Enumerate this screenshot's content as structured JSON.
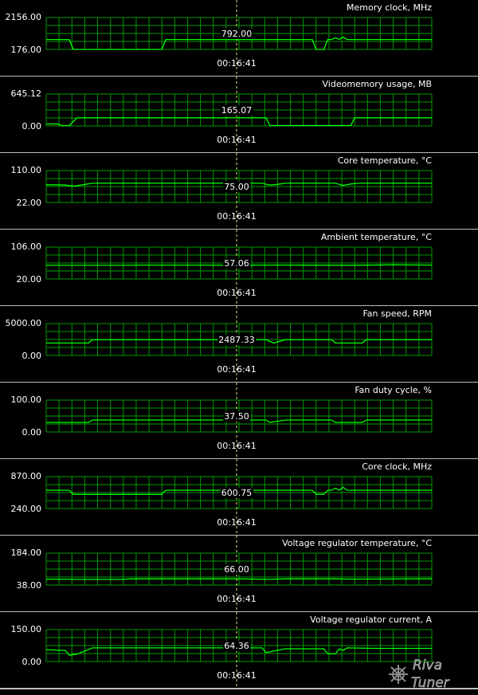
{
  "cursor_time": "00:16:41",
  "colors": {
    "grid": "#009a00",
    "line": "#00ff00",
    "cursor": "#e6e680",
    "separator": "#bdbdbd"
  },
  "watermark": {
    "text": "RivaTuner"
  },
  "chart_data": [
    {
      "type": "line",
      "title": "Memory clock, MHz",
      "ylim": [
        176.0,
        2156.0
      ],
      "ymax_label": "2156.00",
      "ymin_label": "176.00",
      "cursor_value": "792.00",
      "x": [
        0,
        6,
        7,
        30,
        31,
        69,
        70,
        72,
        73,
        74,
        75,
        76,
        77,
        78,
        100
      ],
      "y": [
        792,
        792,
        176,
        176,
        792,
        792,
        176,
        176,
        792,
        792,
        900,
        800,
        950,
        792,
        792
      ]
    },
    {
      "type": "line",
      "title": "Videomemory usage, MB",
      "ylim": [
        0.0,
        645.12
      ],
      "ymax_label": "645.12",
      "ymin_label": "0.00",
      "cursor_value": "165.07",
      "x": [
        0,
        3,
        4,
        6,
        8,
        57,
        58,
        79,
        80,
        82,
        100
      ],
      "y": [
        40,
        40,
        8,
        8,
        165,
        165,
        8,
        8,
        165,
        165,
        165
      ]
    },
    {
      "type": "line",
      "title": "Core temperature, °C",
      "ylim": [
        22.0,
        110.0
      ],
      "ymax_label": "110.00",
      "ymin_label": "22.00",
      "cursor_value": "75.00",
      "x": [
        0,
        5,
        7,
        9,
        12,
        56,
        58,
        60,
        62,
        75,
        77,
        79,
        81,
        100
      ],
      "y": [
        71,
        70,
        67,
        70,
        75,
        75,
        70,
        72,
        75,
        75,
        69,
        73,
        75,
        75
      ]
    },
    {
      "type": "line",
      "title": "Ambient temperature, °C",
      "ylim": [
        20.0,
        106.0
      ],
      "ymax_label": "106.00",
      "ymin_label": "20.00",
      "cursor_value": "57.06",
      "x": [
        0,
        20,
        25,
        50,
        60,
        80,
        90,
        100
      ],
      "y": [
        56.8,
        56.8,
        57.5,
        57,
        57.5,
        57,
        58,
        57.5
      ]
    },
    {
      "type": "line",
      "title": "Fan speed, RPM",
      "ylim": [
        0.0,
        5000.0
      ],
      "ymax_label": "5000.00",
      "ymin_label": "0.00",
      "cursor_value": "2487.33",
      "x": [
        0,
        11,
        12,
        57,
        59,
        62,
        74,
        75,
        82,
        83,
        100
      ],
      "y": [
        1950,
        1950,
        2480,
        2480,
        1950,
        2480,
        2480,
        1950,
        1950,
        2480,
        2480
      ]
    },
    {
      "type": "line",
      "title": "Fan duty cycle, %",
      "ylim": [
        0.0,
        100.0
      ],
      "ymax_label": "100.00",
      "ymin_label": "0.00",
      "cursor_value": "37.50",
      "x": [
        0,
        11,
        12,
        57,
        58,
        62,
        74,
        75,
        82,
        83,
        100
      ],
      "y": [
        30,
        30,
        37.5,
        37.5,
        30,
        37.5,
        37.5,
        30,
        30,
        37.5,
        37.5
      ]
    },
    {
      "type": "line",
      "title": "Core clock, MHz",
      "ylim": [
        240.0,
        870.0
      ],
      "ymax_label": "870.00",
      "ymin_label": "240.00",
      "cursor_value": "600.75",
      "x": [
        0,
        6,
        7,
        30,
        31,
        69,
        70,
        72,
        73,
        74,
        75,
        76,
        77,
        78,
        100
      ],
      "y": [
        600,
        600,
        520,
        520,
        600,
        600,
        520,
        520,
        600,
        600,
        640,
        600,
        660,
        600,
        600
      ]
    },
    {
      "type": "line",
      "title": "Voltage regulator temperature, °C",
      "ylim": [
        38.0,
        184.0
      ],
      "ymax_label": "184.00",
      "ymin_label": "38.00",
      "cursor_value": "66.00",
      "x": [
        0,
        8,
        20,
        22,
        50,
        58,
        62,
        75,
        80,
        100
      ],
      "y": [
        65,
        64,
        64,
        66,
        66,
        64,
        66,
        66,
        65,
        66
      ]
    },
    {
      "type": "line",
      "title": "Voltage regulator current, A",
      "ylim": [
        0.0,
        150.0
      ],
      "ymax_label": "150.00",
      "ymin_label": "0.00",
      "cursor_value": "64.36",
      "x": [
        0,
        5,
        6,
        8,
        12,
        56,
        57,
        62,
        72,
        73,
        75,
        76,
        77,
        78,
        85,
        100
      ],
      "y": [
        56,
        52,
        30,
        35,
        64,
        64,
        42,
        60,
        60,
        36,
        36,
        60,
        52,
        64,
        62,
        62
      ]
    }
  ]
}
